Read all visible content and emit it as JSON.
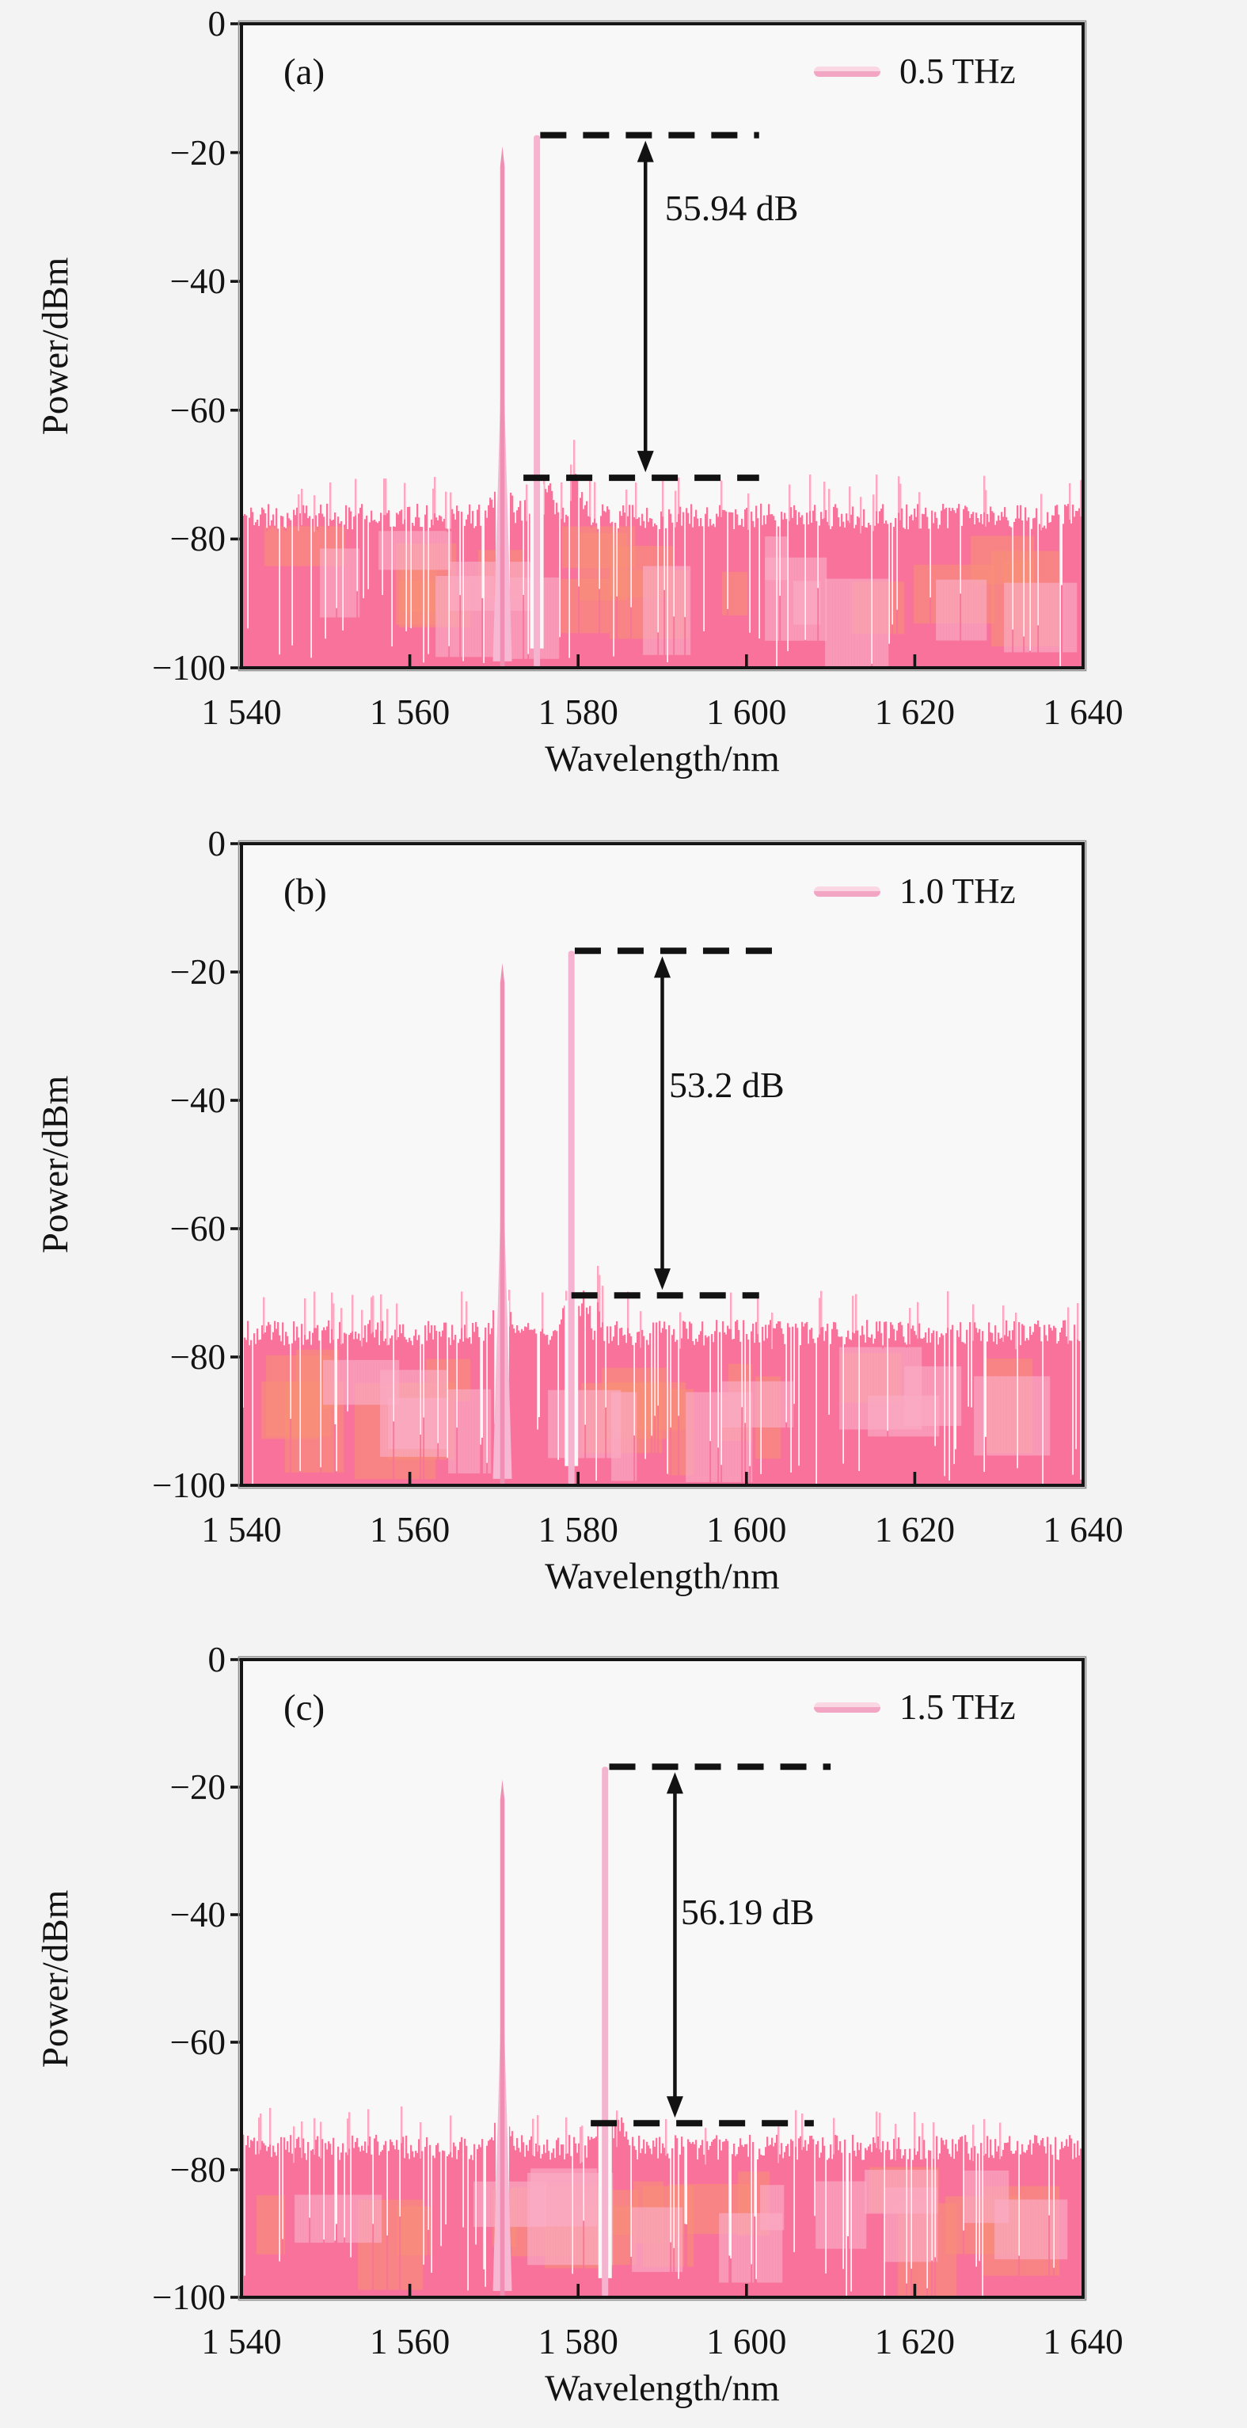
{
  "figure": {
    "background": "#f3f3f3",
    "description_labels": {
      "x_axis": "Wavelength/nm",
      "y_axis": "Power/dBm"
    }
  },
  "chart_colors": {
    "background": "#f3f3f3",
    "plot_bg": "#f8f8f8",
    "axis": "#151515",
    "text": "#131313",
    "annotation": "#121212",
    "noise_pink": "#f8729b",
    "noise_salmon": "#f79078",
    "noise_light": "#fbaec7",
    "spike_light": "#fab6ce",
    "peak_pointed": "#ef8fb4",
    "peak_skirt": "#f6b8d2",
    "peak_flat": "#f6b3cf",
    "legend_swatch_top": "#fbd7e4",
    "legend_swatch_bottom": "#f3a6c4"
  },
  "chart_data": [
    {
      "type": "area",
      "panel_label": "(a)",
      "legend_label": "0.5 THz",
      "annotation_label": "55.94 dB",
      "xlabel": "Wavelength/nm",
      "ylabel": "Power/dBm",
      "xlim": [
        1540,
        1640
      ],
      "ylim": [
        -100,
        0
      ],
      "xticks": [
        1540,
        1560,
        1580,
        1600,
        1620,
        1640
      ],
      "xtick_labels": [
        "1 540",
        "1 560",
        "1 580",
        "1 600",
        "1 620",
        "1 640"
      ],
      "yticks": [
        0,
        -20,
        -40,
        -60,
        -80,
        -100
      ],
      "ytick_labels": [
        "0",
        "−20",
        "−40",
        "−60",
        "−80",
        "−100"
      ],
      "grid": false,
      "legend_position": "top-right",
      "peaks": [
        {
          "wavelength_nm": 1571.0,
          "power_dbm": -19.0,
          "style": "pointed"
        },
        {
          "wavelength_nm": 1575.1,
          "power_dbm": -17.3,
          "style": "flat"
        }
      ],
      "peak_separation_thz": 0.5,
      "osnr_db": 55.94,
      "noise_floor_dbm": -76.5,
      "noise_min_dbm": -100,
      "dashed_guides": {
        "top_dbm": -17.3,
        "bottom_dbm": -70.5,
        "top_x_nm": [
          1575.5,
          1601.5
        ],
        "bottom_x_nm": [
          1573.5,
          1601.5
        ]
      },
      "arrow_x_nm": 1588.0,
      "annotation_pos": {
        "x_nm": 1590.3,
        "power_dbm": -29
      },
      "side_bumps": [
        {
          "wavelength_nm": 1576.6,
          "power_dbm": -72.5,
          "sigma_nm": 0.45
        },
        {
          "wavelength_nm": 1579.8,
          "power_dbm": -70.0,
          "sigma_nm": 0.8
        }
      ],
      "noise_seed": 11
    },
    {
      "type": "area",
      "panel_label": "(b)",
      "legend_label": "1.0 THz",
      "annotation_label": "53.2 dB",
      "xlabel": "Wavelength/nm",
      "ylabel": "Power/dBm",
      "xlim": [
        1540,
        1640
      ],
      "ylim": [
        -100,
        0
      ],
      "xticks": [
        1540,
        1560,
        1580,
        1600,
        1620,
        1640
      ],
      "xtick_labels": [
        "1 540",
        "1 560",
        "1 580",
        "1 600",
        "1 620",
        "1 640"
      ],
      "yticks": [
        0,
        -20,
        -40,
        -60,
        -80,
        -100
      ],
      "ytick_labels": [
        "0",
        "−20",
        "−40",
        "−60",
        "−80",
        "−100"
      ],
      "grid": false,
      "legend_position": "top-right",
      "peaks": [
        {
          "wavelength_nm": 1571.0,
          "power_dbm": -18.6,
          "style": "pointed"
        },
        {
          "wavelength_nm": 1579.2,
          "power_dbm": -16.7,
          "style": "flat"
        }
      ],
      "peak_separation_thz": 1.0,
      "osnr_db": 53.2,
      "noise_floor_dbm": -76.2,
      "noise_min_dbm": -100,
      "dashed_guides": {
        "top_dbm": -16.7,
        "bottom_dbm": -70.4,
        "top_x_nm": [
          1579.6,
          1604.0
        ],
        "bottom_x_nm": [
          1579.2,
          1601.5
        ]
      },
      "arrow_x_nm": 1590.0,
      "annotation_pos": {
        "x_nm": 1590.8,
        "power_dbm": -38
      },
      "side_bumps": [
        {
          "wavelength_nm": 1580.9,
          "power_dbm": -70.8,
          "sigma_nm": 0.5
        },
        {
          "wavelength_nm": 1582.4,
          "power_dbm": -72.2,
          "sigma_nm": 0.4
        }
      ],
      "noise_seed": 23
    },
    {
      "type": "area",
      "panel_label": "(c)",
      "legend_label": "1.5 THz",
      "annotation_label": "56.19 dB",
      "xlabel": "Wavelength/nm",
      "ylabel": "Power/dBm",
      "xlim": [
        1540,
        1640
      ],
      "ylim": [
        -100,
        0
      ],
      "xticks": [
        1540,
        1560,
        1580,
        1600,
        1620,
        1640
      ],
      "xtick_labels": [
        "1 540",
        "1 560",
        "1 580",
        "1 600",
        "1 620",
        "1 640"
      ],
      "yticks": [
        0,
        -20,
        -40,
        -60,
        -80,
        -100
      ],
      "ytick_labels": [
        "0",
        "−20",
        "−40",
        "−60",
        "−80",
        "−100"
      ],
      "grid": false,
      "legend_position": "top-right",
      "peaks": [
        {
          "wavelength_nm": 1571.0,
          "power_dbm": -18.8,
          "style": "pointed"
        },
        {
          "wavelength_nm": 1583.2,
          "power_dbm": -16.8,
          "style": "flat"
        }
      ],
      "peak_separation_thz": 1.5,
      "osnr_db": 56.19,
      "noise_floor_dbm": -76.5,
      "noise_min_dbm": -100,
      "dashed_guides": {
        "top_dbm": -16.8,
        "bottom_dbm": -72.7,
        "top_x_nm": [
          1583.7,
          1610.0
        ],
        "bottom_x_nm": [
          1581.5,
          1608.0
        ]
      },
      "arrow_x_nm": 1591.5,
      "annotation_pos": {
        "x_nm": 1592.2,
        "power_dbm": -40
      },
      "side_bumps": [
        {
          "wavelength_nm": 1585.1,
          "power_dbm": -73.5,
          "sigma_nm": 0.5
        }
      ],
      "noise_seed": 37
    }
  ]
}
